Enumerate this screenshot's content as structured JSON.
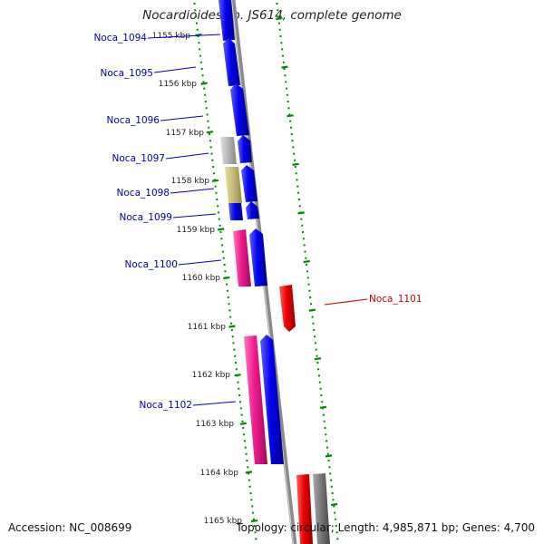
{
  "title": "Nocardioides sp. JS614, complete genome",
  "accession": "Accession: NC_008699",
  "summary": "Topology: circular; Length: 4,985,871 bp; Genes: 4,700",
  "colors": {
    "blue_gene": "#0000ee",
    "magenta_gene": "#ee1a8c",
    "red_gene": "#ee0000",
    "gray_gene": "#b8b8b8",
    "khaki_gene": "#c8bc78",
    "dark_gray_gene": "#7a7a7a",
    "backbone": "#8a8a8a",
    "ticks": "#008800",
    "label_blue": "#0000aa",
    "label_red": "#cc0000"
  },
  "scale_labels": [
    "1155 kbp",
    "1156 kbp",
    "1157 kbp",
    "1158 kbp",
    "1159 kbp",
    "1160 kbp",
    "1161 kbp",
    "1162 kbp",
    "1163 kbp",
    "1164 kbp",
    "1165 kbp"
  ],
  "gene_labels": [
    "Noca_1094",
    "Noca_1095",
    "Noca_1096",
    "Noca_1097",
    "Noca_1098",
    "Noca_1099",
    "Noca_1100",
    "Noca_1101",
    "Noca_1102"
  ]
}
